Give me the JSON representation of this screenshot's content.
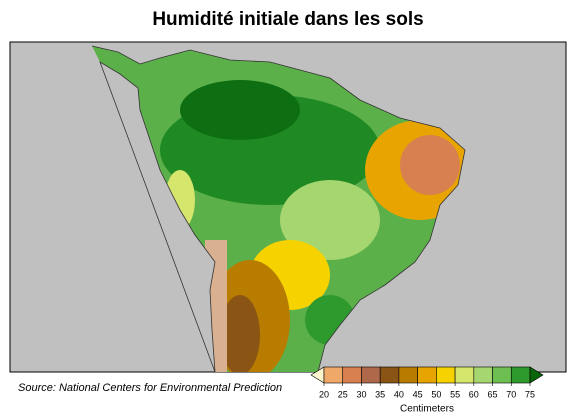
{
  "header": {
    "title": "Humidité initiale dans les sols"
  },
  "source": "Source: National Centers for Environmental Prediction",
  "colorbar": {
    "label": "Centimeters",
    "ticks": [
      20,
      25,
      30,
      35,
      40,
      45,
      50,
      55,
      60,
      65,
      70,
      75
    ],
    "colors": [
      "#fbf3cc",
      "#f0a868",
      "#d98050",
      "#b0684a",
      "#8a5514",
      "#b87c00",
      "#e8a400",
      "#f5d200",
      "#d6e66c",
      "#a6d670",
      "#6cbf50",
      "#2e9a2e",
      "#0a650a"
    ]
  }
}
